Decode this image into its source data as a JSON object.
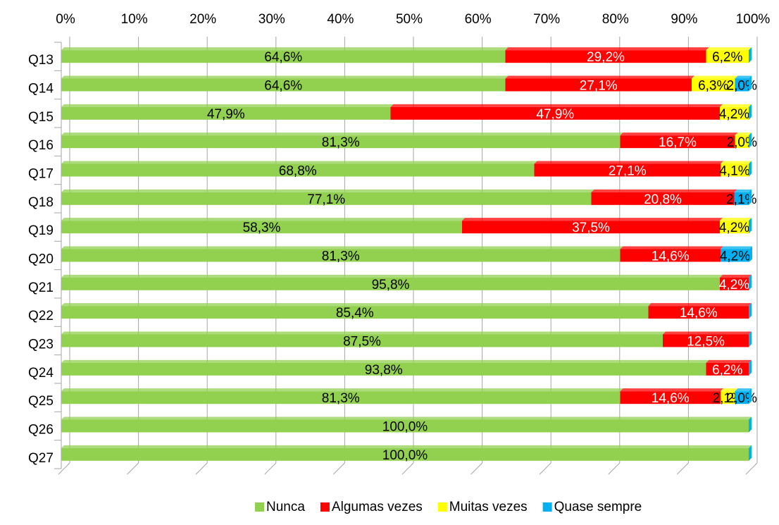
{
  "chart_data": {
    "type": "stacked_barh",
    "categories": [
      "Q13",
      "Q14",
      "Q15",
      "Q16",
      "Q17",
      "Q18",
      "Q19",
      "Q20",
      "Q21",
      "Q22",
      "Q23",
      "Q24",
      "Q25",
      "Q26",
      "Q27"
    ],
    "series": [
      {
        "name": "Nunca",
        "color": "#92d050",
        "label_color": "#000000",
        "values": [
          64.6,
          64.6,
          47.9,
          81.3,
          68.8,
          77.1,
          58.3,
          81.3,
          95.8,
          85.4,
          87.5,
          93.8,
          81.3,
          100,
          100
        ],
        "value_labels": [
          "64,6%",
          "64,6%",
          "47,9%",
          "81,3%",
          "68,8%",
          "77,1%",
          "58,3%",
          "81,3%",
          "95,8%",
          "85,4%",
          "87,5%",
          "93,8%",
          "81,3%",
          "100,0%",
          "100,0%"
        ]
      },
      {
        "name": "Algumas vezes",
        "color": "#ff0000",
        "label_color": "#ffffff",
        "values": [
          29.2,
          27.1,
          47.9,
          16.7,
          27.1,
          20.8,
          37.5,
          14.6,
          4.2,
          14.6,
          12.5,
          6.2,
          14.6,
          0,
          0
        ],
        "value_labels": [
          "29,2%",
          "27,1%",
          "47,9%",
          "16,7%",
          "27,1%",
          "20,8%",
          "37,5%",
          "14,6%",
          "4,2%",
          "14,6%",
          "12,5%",
          "6,2%",
          "14,6%",
          null,
          null
        ]
      },
      {
        "name": "Muitas vezes",
        "color": "#ffff00",
        "label_color": "#000000",
        "values": [
          6.2,
          6.3,
          4.2,
          2.0,
          4.1,
          0,
          4.2,
          0,
          0,
          0,
          0,
          0,
          2.1,
          0,
          0
        ],
        "value_labels": [
          "6,2%",
          "6,3%",
          "4,2%",
          "2,0%",
          "4,1%",
          null,
          "4,2%",
          null,
          null,
          null,
          null,
          null,
          "2,1%",
          null,
          null
        ]
      },
      {
        "name": "Quase sempre",
        "color": "#00b0f0",
        "label_color": "#000000",
        "values": [
          0,
          2.0,
          0,
          0,
          0,
          2.1,
          0,
          4.2,
          0,
          0,
          0,
          0,
          2.0,
          0,
          0
        ],
        "value_labels": [
          null,
          "2,0%",
          null,
          null,
          null,
          "2,1%",
          null,
          "4,2%",
          null,
          null,
          null,
          null,
          "2,0%",
          null,
          null
        ]
      }
    ],
    "xlim": [
      0,
      100
    ],
    "xticks": [
      {
        "value": 0,
        "label": "0%"
      },
      {
        "value": 10,
        "label": "10%"
      },
      {
        "value": 20,
        "label": "20%"
      },
      {
        "value": 30,
        "label": "30%"
      },
      {
        "value": 40,
        "label": "40%"
      },
      {
        "value": 50,
        "label": "50%"
      },
      {
        "value": 60,
        "label": "60%"
      },
      {
        "value": 70,
        "label": "70%"
      },
      {
        "value": 80,
        "label": "80%"
      },
      {
        "value": 90,
        "label": "90%"
      },
      {
        "value": 100,
        "label": "100%"
      }
    ],
    "grid": true,
    "legend": "bottom"
  }
}
